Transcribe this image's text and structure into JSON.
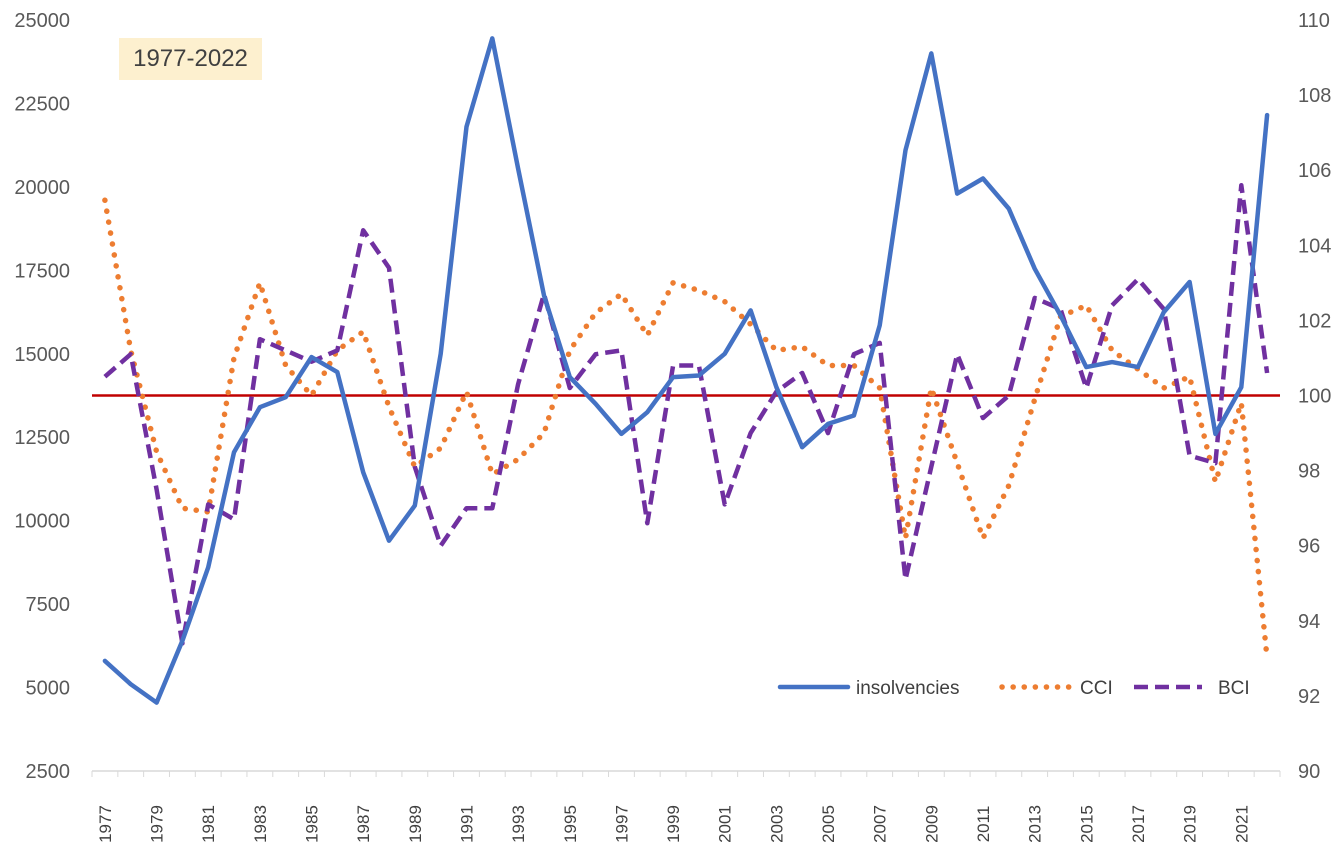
{
  "period_label": "1977-2022",
  "chart_data": {
    "type": "line",
    "title": "",
    "xlabel": "",
    "ylabel": "",
    "years": [
      1977,
      1978,
      1979,
      1980,
      1981,
      1982,
      1983,
      1984,
      1985,
      1986,
      1987,
      1988,
      1989,
      1990,
      1991,
      1992,
      1993,
      1994,
      1995,
      1996,
      1997,
      1998,
      1999,
      2000,
      2001,
      2002,
      2003,
      2004,
      2005,
      2006,
      2007,
      2008,
      2009,
      2010,
      2011,
      2012,
      2013,
      2014,
      2015,
      2016,
      2017,
      2018,
      2019,
      2020,
      2021,
      2022
    ],
    "x_tick_labels": [
      "1977",
      "1979",
      "1981",
      "1983",
      "1985",
      "1987",
      "1989",
      "1991",
      "1993",
      "1995",
      "1997",
      "1999",
      "2001",
      "2003",
      "2005",
      "2007",
      "2009",
      "2011",
      "2013",
      "2015",
      "2017",
      "2019",
      "2021"
    ],
    "y_left": {
      "min": 2500,
      "max": 25000,
      "ticks": [
        "2500",
        "5000",
        "7500",
        "10000",
        "12500",
        "15000",
        "17500",
        "20000",
        "22500",
        "25000"
      ]
    },
    "y_right": {
      "min": 90,
      "max": 110,
      "ticks": [
        "90",
        "92",
        "94",
        "96",
        "98",
        "100",
        "102",
        "104",
        "106",
        "108",
        "110"
      ]
    },
    "reference_line": {
      "axis": "right",
      "value": 100,
      "color": "#c00000"
    },
    "legend_position": "bottom-right",
    "series": [
      {
        "name": "insolvencies",
        "axis": "left",
        "style": "solid",
        "color": "#4472c4",
        "values": [
          5800,
          5100,
          4550,
          6400,
          8600,
          12050,
          13400,
          13700,
          14900,
          14450,
          11450,
          9400,
          10450,
          15000,
          21800,
          24450,
          20550,
          16750,
          14300,
          13500,
          12600,
          13250,
          14300,
          14350,
          15000,
          16300,
          14000,
          12200,
          12900,
          13150,
          15850,
          21100,
          24000,
          19800,
          20250,
          19350,
          17550,
          16150,
          14600,
          14750,
          14600,
          16250,
          17150,
          12600,
          14000,
          22150
        ]
      },
      {
        "name": "CCI",
        "axis": "right",
        "style": "dotted",
        "color": "#ed7d31",
        "values": [
          105.2,
          101.2,
          98.5,
          97.0,
          96.9,
          101.0,
          103.0,
          100.8,
          100.0,
          101.2,
          101.7,
          99.7,
          98.1,
          98.6,
          100.1,
          97.9,
          98.3,
          99.0,
          101.2,
          102.2,
          102.7,
          101.6,
          103.0,
          102.8,
          102.5,
          101.9,
          101.2,
          101.3,
          100.8,
          100.8,
          100.2,
          96.2,
          100.2,
          98.2,
          96.2,
          97.6,
          99.9,
          102.1,
          102.4,
          101.2,
          100.7,
          100.2,
          100.5,
          97.7,
          99.8,
          93.0
        ]
      },
      {
        "name": "BCI",
        "axis": "right",
        "style": "dashed",
        "color": "#7030a0",
        "values": [
          100.5,
          101.1,
          97.5,
          93.4,
          97.1,
          96.7,
          101.5,
          101.2,
          100.9,
          101.2,
          104.4,
          103.4,
          98.1,
          96.0,
          97.0,
          97.0,
          100.3,
          102.7,
          100.2,
          101.1,
          101.2,
          96.6,
          100.8,
          100.8,
          97.1,
          99.0,
          100.1,
          100.6,
          99.0,
          101.1,
          101.4,
          95.1,
          98.1,
          101.1,
          99.4,
          100.0,
          102.6,
          102.3,
          100.2,
          102.4,
          103.1,
          102.3,
          98.4,
          98.2,
          105.6,
          100.6
        ]
      }
    ]
  }
}
